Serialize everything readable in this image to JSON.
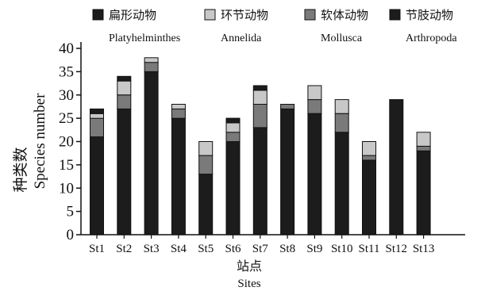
{
  "chart_data": {
    "type": "bar",
    "stacked": true,
    "categories": [
      "St1",
      "St2",
      "St3",
      "St4",
      "St5",
      "St6",
      "St7",
      "St8",
      "St9",
      "St10",
      "St11",
      "St12",
      "St13"
    ],
    "series": [
      {
        "name": "节肢动物",
        "name_en": "Arthropoda",
        "color": "#1c1c1c",
        "values": [
          21,
          27,
          35,
          25,
          13,
          20,
          23,
          27,
          26,
          22,
          16,
          29,
          18
        ]
      },
      {
        "name": "软体动物",
        "name_en": "Mollusca",
        "color": "#7a7a7a",
        "values": [
          4,
          3,
          2,
          2,
          4,
          2,
          5,
          1,
          3,
          4,
          1,
          0,
          1
        ]
      },
      {
        "name": "环节动物",
        "name_en": "Annelida",
        "color": "#c8c8c8",
        "values": [
          1,
          3,
          1,
          1,
          3,
          2,
          3,
          0,
          3,
          3,
          3,
          0,
          3
        ]
      },
      {
        "name": "扁形动物",
        "name_en": "Platyhelminthes",
        "color": "#1c1c1c",
        "values": [
          1,
          1,
          0,
          0,
          0,
          1,
          1,
          0,
          0,
          0,
          0,
          0,
          0
        ]
      }
    ],
    "legend_order": [
      3,
      2,
      1,
      0
    ],
    "legend_placement": "top",
    "ylabel_cn": "种类数",
    "ylabel_en": "Species number",
    "xlabel_cn": "站点",
    "xlabel_en": "Sites",
    "yticks": [
      0,
      5,
      10,
      15,
      20,
      25,
      30,
      35,
      40
    ],
    "ylim": [
      0,
      40
    ],
    "grid": false
  }
}
